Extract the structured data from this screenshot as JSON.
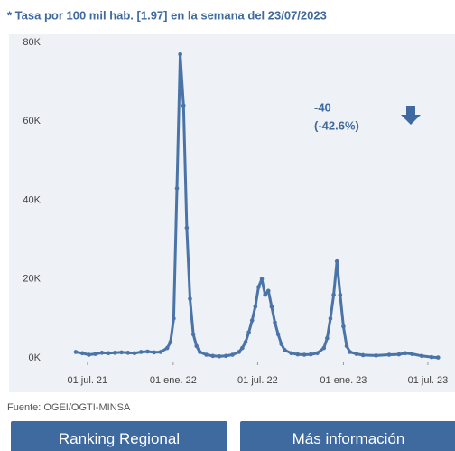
{
  "header": {
    "title": "* Tasa por 100 mil hab. [1.97] en la semana del 23/07/2023"
  },
  "chart_data": {
    "type": "line",
    "color": "#4a74a8",
    "annotation": [
      "-40",
      "(-42.6%)"
    ],
    "x": [
      "2021-06-06",
      "2021-06-20",
      "2021-07-04",
      "2021-07-18",
      "2021-08-01",
      "2021-08-15",
      "2021-08-29",
      "2021-09-12",
      "2021-09-26",
      "2021-10-10",
      "2021-10-24",
      "2021-11-07",
      "2021-11-21",
      "2021-12-05",
      "2021-12-19",
      "2021-12-26",
      "2022-01-02",
      "2022-01-09",
      "2022-01-16",
      "2022-01-23",
      "2022-01-30",
      "2022-02-06",
      "2022-02-13",
      "2022-02-20",
      "2022-02-27",
      "2022-03-13",
      "2022-03-27",
      "2022-04-10",
      "2022-04-24",
      "2022-05-08",
      "2022-05-22",
      "2022-05-29",
      "2022-06-05",
      "2022-06-12",
      "2022-06-19",
      "2022-06-26",
      "2022-07-03",
      "2022-07-10",
      "2022-07-17",
      "2022-07-24",
      "2022-07-31",
      "2022-08-07",
      "2022-08-14",
      "2022-08-21",
      "2022-08-28",
      "2022-09-11",
      "2022-09-25",
      "2022-10-09",
      "2022-10-23",
      "2022-11-06",
      "2022-11-20",
      "2022-11-27",
      "2022-12-04",
      "2022-12-11",
      "2022-12-18",
      "2022-12-25",
      "2023-01-01",
      "2023-01-08",
      "2023-01-15",
      "2023-01-29",
      "2023-02-12",
      "2023-03-12",
      "2023-04-09",
      "2023-04-30",
      "2023-05-14",
      "2023-05-28",
      "2023-06-18",
      "2023-07-09",
      "2023-07-23"
    ],
    "values": [
      1500,
      1200,
      800,
      1000,
      1300,
      1200,
      1300,
      1400,
      1300,
      1200,
      1500,
      1600,
      1400,
      1500,
      2500,
      4000,
      10000,
      43000,
      77000,
      64000,
      33000,
      15000,
      6000,
      3000,
      1500,
      800,
      500,
      400,
      500,
      800,
      1500,
      2500,
      4000,
      6500,
      9500,
      13000,
      18000,
      20000,
      16000,
      17000,
      13000,
      9000,
      6000,
      3500,
      2000,
      1200,
      900,
      800,
      900,
      1200,
      2500,
      5000,
      10000,
      16000,
      24500,
      16000,
      8000,
      3000,
      1500,
      1000,
      700,
      600,
      800,
      900,
      1200,
      1000,
      500,
      200,
      100
    ],
    "xlim": [
      "2021-05-10",
      "2023-08-05"
    ],
    "xticks": [
      {
        "value": "2021-07-01",
        "label": "01 jul. 21"
      },
      {
        "value": "2022-01-01",
        "label": "01 ene. 22"
      },
      {
        "value": "2022-07-01",
        "label": "01 jul. 22"
      },
      {
        "value": "2023-01-01",
        "label": "01 ene. 23"
      },
      {
        "value": "2023-07-01",
        "label": "01 jul. 23"
      }
    ],
    "ylim": [
      0,
      80000
    ],
    "yticks": [
      {
        "value": 0,
        "label": "0K"
      },
      {
        "value": 20000,
        "label": "20K"
      },
      {
        "value": 40000,
        "label": "40K"
      },
      {
        "value": 60000,
        "label": "60K"
      },
      {
        "value": 80000,
        "label": "80K"
      }
    ]
  },
  "footer": {
    "source": "Fuente: OGEI/OGTI-MINSA"
  },
  "buttons": [
    "Ranking Regional",
    "Más información"
  ]
}
